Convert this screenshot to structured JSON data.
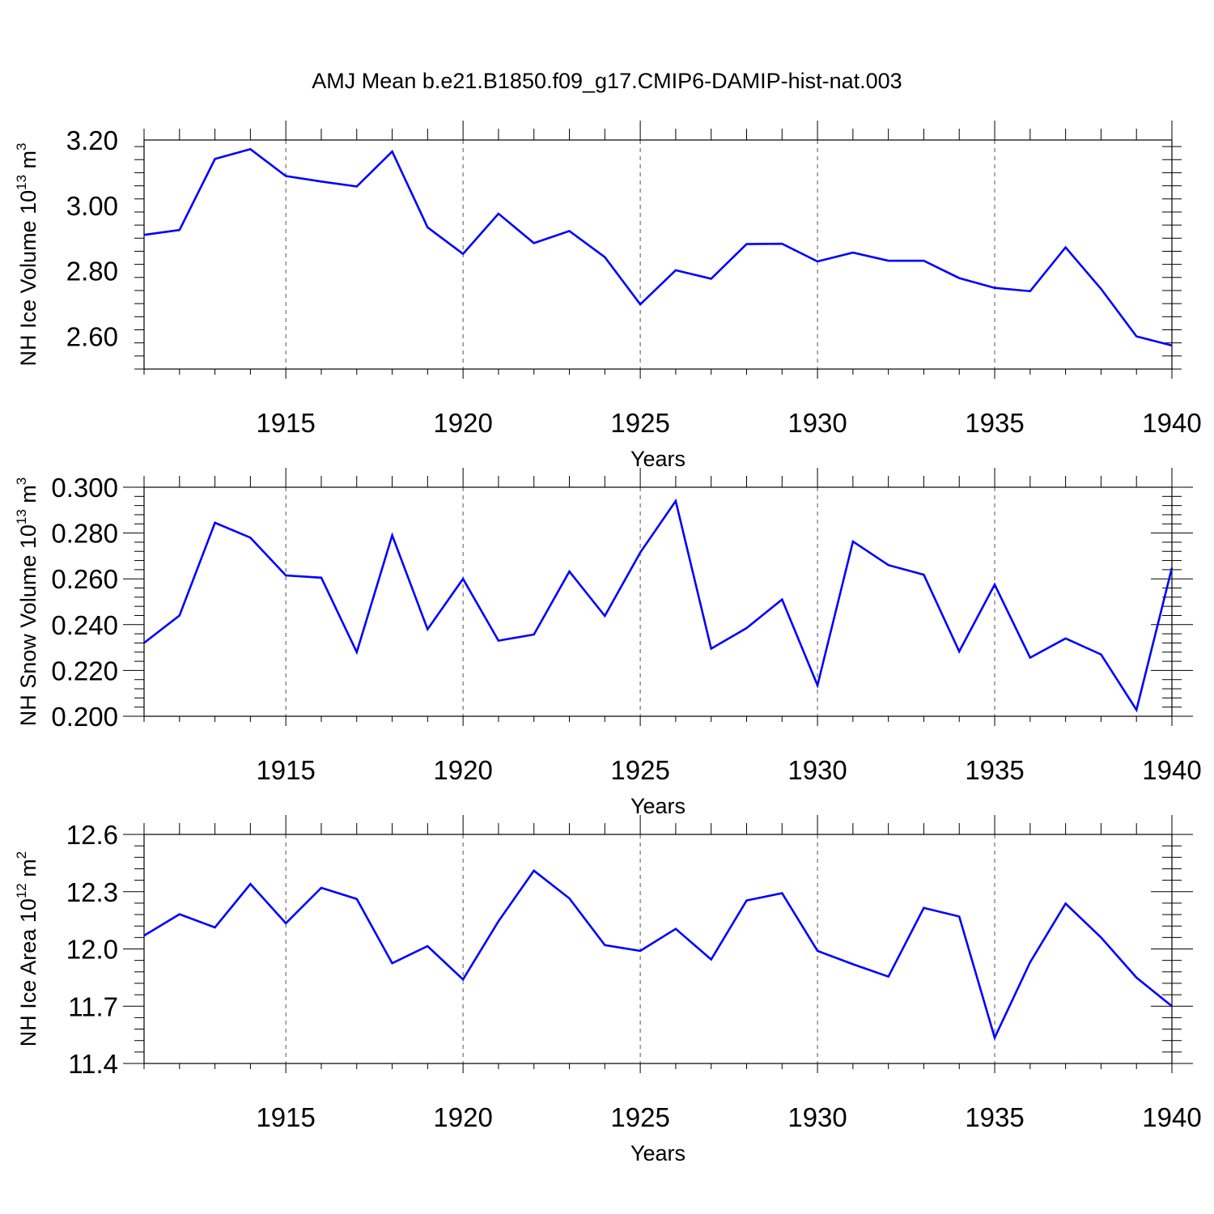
{
  "title": "AMJ Mean b.e21.B1850.f09_g17.CMIP6-DAMIP-hist-nat.003",
  "chart_data": [
    {
      "type": "line",
      "ylabel": "NH Ice Volume 10^13 m^3",
      "ylabel_text": "NH Ice Volume 10",
      "ylabel_exp": "13",
      "ylabel_unit": "m",
      "ylabel_unit_exp": "3",
      "xlabel": "Years",
      "xlim": [
        1911,
        1940
      ],
      "ylim": [
        2.5,
        3.2
      ],
      "yticks": [
        2.6,
        2.8,
        3.0,
        3.2
      ],
      "ytick_labels": [
        "2.60",
        "2.80",
        "3.00",
        "3.20"
      ],
      "xticks": [
        1915,
        1920,
        1925,
        1930,
        1935,
        1940
      ],
      "xtick_labels": [
        "1915",
        "1920",
        "1925",
        "1930",
        "1935",
        "1940"
      ],
      "grid": "vertical dashed at major x ticks",
      "line_color": "#0000ff",
      "x": [
        1911,
        1912,
        1913,
        1914,
        1915,
        1916,
        1917,
        1918,
        1919,
        1920,
        1921,
        1922,
        1923,
        1924,
        1925,
        1926,
        1927,
        1928,
        1929,
        1930,
        1931,
        1932,
        1933,
        1934,
        1935,
        1936,
        1937,
        1938,
        1939,
        1940
      ],
      "y": [
        2.91,
        2.925,
        3.142,
        3.172,
        3.09,
        3.073,
        3.058,
        3.165,
        2.933,
        2.852,
        2.975,
        2.885,
        2.922,
        2.842,
        2.698,
        2.802,
        2.776,
        2.882,
        2.883,
        2.829,
        2.856,
        2.831,
        2.831,
        2.778,
        2.748,
        2.738,
        2.872,
        2.745,
        2.6,
        2.572
      ]
    },
    {
      "type": "line",
      "ylabel": "NH Snow Volume 10^13 m^3",
      "ylabel_text": "NH Snow Volume 10",
      "ylabel_exp": "13",
      "ylabel_unit": "m",
      "ylabel_unit_exp": "3",
      "xlabel": "Years",
      "xlim": [
        1911,
        1940
      ],
      "ylim": [
        0.2,
        0.3
      ],
      "yticks": [
        0.2,
        0.22,
        0.24,
        0.26,
        0.28,
        0.3
      ],
      "ytick_labels": [
        "0.200",
        "0.220",
        "0.240",
        "0.260",
        "0.280",
        "0.300"
      ],
      "xticks": [
        1915,
        1920,
        1925,
        1930,
        1935,
        1940
      ],
      "xtick_labels": [
        "1915",
        "1920",
        "1925",
        "1930",
        "1935",
        "1940"
      ],
      "grid": "vertical dashed at major x ticks",
      "line_color": "#0000ff",
      "x": [
        1911,
        1912,
        1913,
        1914,
        1915,
        1916,
        1917,
        1918,
        1919,
        1920,
        1921,
        1922,
        1923,
        1924,
        1925,
        1926,
        1927,
        1928,
        1929,
        1930,
        1931,
        1932,
        1933,
        1934,
        1935,
        1936,
        1937,
        1938,
        1939,
        1940
      ],
      "y": [
        0.232,
        0.244,
        0.2845,
        0.278,
        0.2615,
        0.2605,
        0.228,
        0.279,
        0.238,
        0.26,
        0.233,
        0.2357,
        0.2632,
        0.2438,
        0.2715,
        0.294,
        0.2295,
        0.2385,
        0.251,
        0.2135,
        0.2763,
        0.266,
        0.2618,
        0.2283,
        0.2575,
        0.2256,
        0.234,
        0.227,
        0.2028,
        0.2648
      ]
    },
    {
      "type": "line",
      "ylabel": "NH Ice Area 10^12 m^2",
      "ylabel_text": "NH Ice Area 10",
      "ylabel_exp": "12",
      "ylabel_unit": "m",
      "ylabel_unit_exp": "2",
      "xlabel": "Years",
      "xlim": [
        1911,
        1940
      ],
      "ylim": [
        11.4,
        12.6
      ],
      "yticks": [
        11.4,
        11.7,
        12.0,
        12.3,
        12.6
      ],
      "ytick_labels": [
        "11.4",
        "11.7",
        "12.0",
        "12.3",
        "12.6"
      ],
      "xticks": [
        1915,
        1920,
        1925,
        1930,
        1935,
        1940
      ],
      "xtick_labels": [
        "1915",
        "1920",
        "1925",
        "1930",
        "1935",
        "1940"
      ],
      "grid": "vertical dashed at major x ticks",
      "line_color": "#0000ff",
      "x": [
        1911,
        1912,
        1913,
        1914,
        1915,
        1916,
        1917,
        1918,
        1919,
        1920,
        1921,
        1922,
        1923,
        1924,
        1925,
        1926,
        1927,
        1928,
        1929,
        1930,
        1931,
        1932,
        1933,
        1934,
        1935,
        1936,
        1937,
        1938,
        1939,
        1940
      ],
      "y": [
        12.07,
        12.182,
        12.113,
        12.34,
        12.135,
        12.32,
        12.262,
        11.925,
        12.015,
        11.84,
        12.145,
        12.41,
        12.265,
        12.02,
        11.99,
        12.105,
        11.945,
        12.254,
        12.292,
        11.99,
        11.92,
        11.855,
        12.215,
        12.17,
        11.535,
        11.93,
        12.238,
        12.06,
        11.85,
        11.7
      ]
    }
  ]
}
